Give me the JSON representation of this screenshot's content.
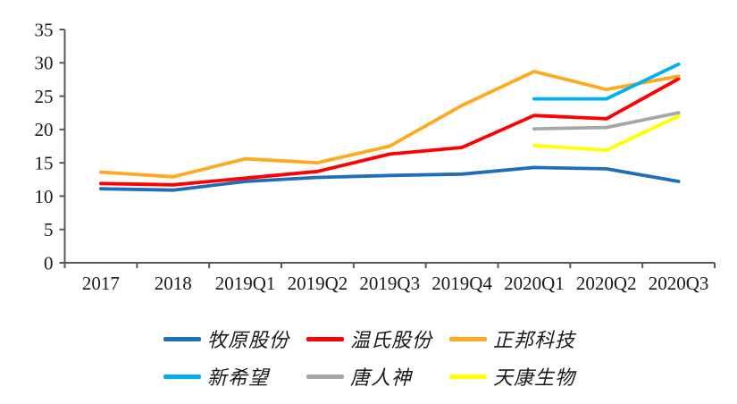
{
  "chart_data": {
    "type": "line",
    "title": "",
    "xlabel": "",
    "ylabel": "",
    "ylim": [
      0,
      35
    ],
    "yticks": [
      0,
      5,
      10,
      15,
      20,
      25,
      30,
      35
    ],
    "grid": false,
    "legend_position": "bottom",
    "categories": [
      "2017",
      "2018",
      "2019Q1",
      "2019Q2",
      "2019Q3",
      "2019Q4",
      "2020Q1",
      "2020Q2",
      "2020Q3"
    ],
    "series": [
      {
        "key": "muyuan",
        "name": "牧原股份",
        "color": "#1F6FB8",
        "values": [
          11.1,
          10.9,
          12.2,
          12.8,
          13.1,
          13.3,
          14.3,
          14.1,
          12.2
        ]
      },
      {
        "key": "wenshi",
        "name": "温氏股份",
        "color": "#FF0000",
        "values": [
          11.9,
          11.7,
          12.7,
          13.7,
          16.3,
          17.3,
          22.1,
          21.6,
          27.6
        ]
      },
      {
        "key": "zhengbang",
        "name": "正邦科技",
        "color": "#FFA91E",
        "values": [
          13.6,
          12.9,
          15.6,
          15.0,
          17.5,
          23.6,
          28.7,
          26.0,
          28.0
        ]
      },
      {
        "key": "xinxiwang",
        "name": "新希望",
        "color": "#00B0F0",
        "values": [
          null,
          null,
          null,
          null,
          null,
          null,
          24.6,
          24.6,
          29.8
        ]
      },
      {
        "key": "tangrenshen",
        "name": "唐人神",
        "color": "#A6A6A6",
        "values": [
          null,
          null,
          null,
          null,
          null,
          null,
          20.1,
          20.3,
          22.5
        ]
      },
      {
        "key": "tiankang",
        "name": "天康生物",
        "color": "#FFFF00",
        "values": [
          null,
          null,
          null,
          null,
          null,
          null,
          17.6,
          16.9,
          22.0
        ]
      }
    ]
  },
  "axis_style": {
    "line_color": "#595959",
    "text_color": "#1a1a1a"
  }
}
